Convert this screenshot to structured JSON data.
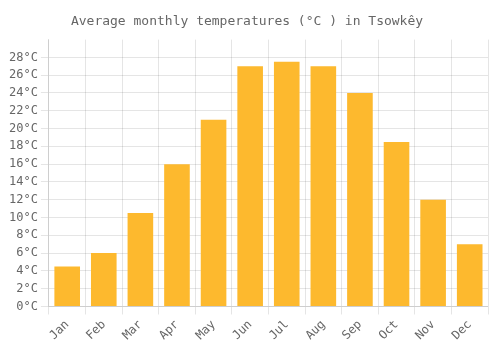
{
  "chart_data": {
    "type": "bar",
    "title": "Average monthly temperatures (°C ) in Tsowkêy",
    "categories": [
      "Jan",
      "Feb",
      "Mar",
      "Apr",
      "May",
      "Jun",
      "Jul",
      "Aug",
      "Sep",
      "Oct",
      "Nov",
      "Dec"
    ],
    "values": [
      4.5,
      6.0,
      10.5,
      16.0,
      21.0,
      27.0,
      27.5,
      27.0,
      24.0,
      18.5,
      12.0,
      7.0
    ],
    "color": "#FDB92E",
    "ylim": [
      0,
      30
    ],
    "yticks": [
      {
        "value": 0,
        "label": "0°C"
      },
      {
        "value": 2,
        "label": "2°C"
      },
      {
        "value": 4,
        "label": "4°C"
      },
      {
        "value": 6,
        "label": "6°C"
      },
      {
        "value": 8,
        "label": "8°C"
      },
      {
        "value": 10,
        "label": "10°C"
      },
      {
        "value": 12,
        "label": "12°C"
      },
      {
        "value": 14,
        "label": "14°C"
      },
      {
        "value": 16,
        "label": "16°C"
      },
      {
        "value": 18,
        "label": "18°C"
      },
      {
        "value": 20,
        "label": "20°C"
      },
      {
        "value": 22,
        "label": "22°C"
      },
      {
        "value": 24,
        "label": "24°C"
      },
      {
        "value": 26,
        "label": "26°C"
      },
      {
        "value": 28,
        "label": "28°C"
      }
    ],
    "grid": true
  }
}
